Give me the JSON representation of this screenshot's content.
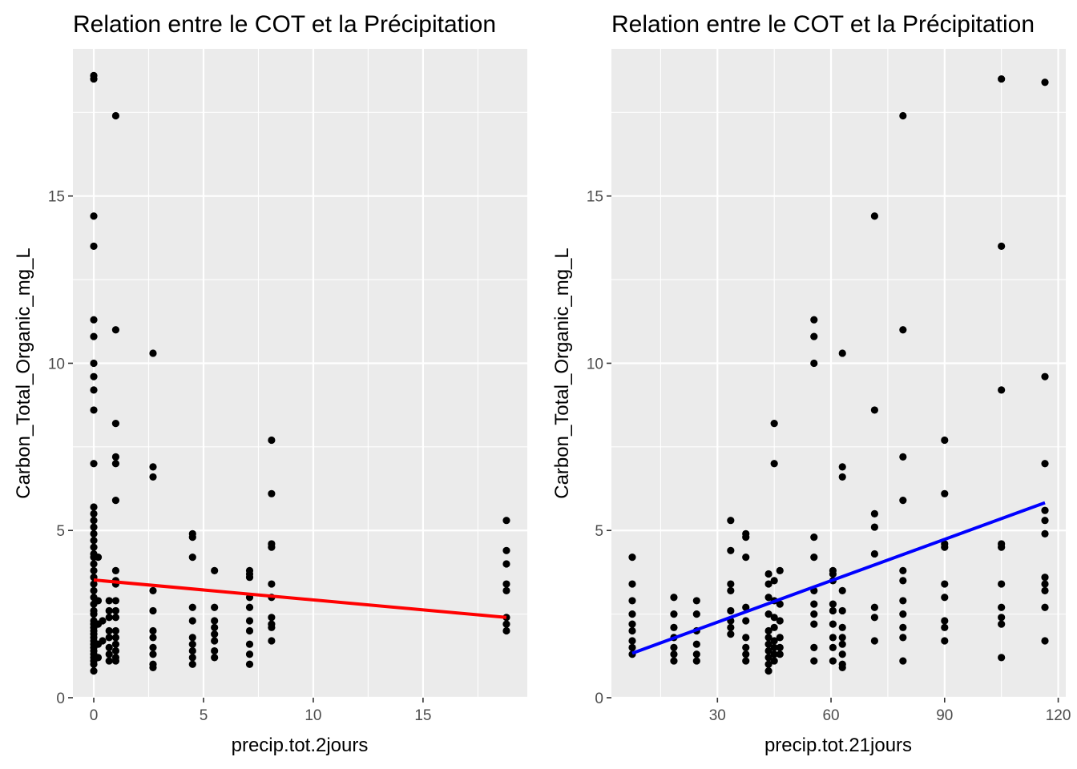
{
  "chart_data": [
    {
      "type": "scatter",
      "title": "Relation entre le COT et la Précipitation",
      "xlabel": "precip.tot.2jours",
      "ylabel": "Carbon_Total_Organic_mg_L",
      "xlim": [
        -0.95,
        19.75
      ],
      "ylim": [
        0,
        19.4
      ],
      "xticks": [
        0,
        5,
        10,
        15
      ],
      "xtick_labels": [
        "0",
        "5",
        "10",
        "15"
      ],
      "yticks": [
        0,
        5,
        10,
        15
      ],
      "ytick_labels": [
        "0",
        "5",
        "10",
        "15"
      ],
      "grid": true,
      "points": [
        [
          0,
          18.6
        ],
        [
          0,
          18.5
        ],
        [
          0,
          14.4
        ],
        [
          0,
          13.5
        ],
        [
          0,
          11.3
        ],
        [
          0,
          10.8
        ],
        [
          0,
          10.0
        ],
        [
          0,
          9.6
        ],
        [
          0,
          9.2
        ],
        [
          0,
          8.6
        ],
        [
          0,
          7.0
        ],
        [
          0,
          5.7
        ],
        [
          0,
          5.5
        ],
        [
          0,
          5.3
        ],
        [
          0,
          5.1
        ],
        [
          0,
          4.9
        ],
        [
          0,
          4.7
        ],
        [
          0,
          4.5
        ],
        [
          0,
          4.3
        ],
        [
          0,
          4.2
        ],
        [
          0,
          4.0
        ],
        [
          0,
          3.8
        ],
        [
          0,
          3.6
        ],
        [
          0,
          3.4
        ],
        [
          0,
          3.2
        ],
        [
          0,
          3.0
        ],
        [
          0,
          2.8
        ],
        [
          0,
          2.6
        ],
        [
          0,
          2.5
        ],
        [
          0,
          2.3
        ],
        [
          0,
          2.2
        ],
        [
          0,
          2.1
        ],
        [
          0,
          2.0
        ],
        [
          0,
          1.9
        ],
        [
          0,
          1.8
        ],
        [
          0,
          1.7
        ],
        [
          0,
          1.6
        ],
        [
          0,
          1.5
        ],
        [
          0,
          1.4
        ],
        [
          0,
          1.3
        ],
        [
          0,
          1.2
        ],
        [
          0,
          1.1
        ],
        [
          0,
          1.0
        ],
        [
          0,
          0.8
        ],
        [
          0.2,
          4.2
        ],
        [
          0.2,
          2.9
        ],
        [
          0.2,
          2.2
        ],
        [
          0.2,
          1.6
        ],
        [
          0.2,
          1.2
        ],
        [
          0.4,
          2.3
        ],
        [
          0.4,
          1.7
        ],
        [
          0.7,
          2.9
        ],
        [
          0.7,
          2.6
        ],
        [
          0.7,
          2.4
        ],
        [
          0.7,
          2.0
        ],
        [
          0.7,
          1.8
        ],
        [
          0.7,
          1.5
        ],
        [
          0.7,
          1.3
        ],
        [
          0.7,
          1.1
        ],
        [
          1.0,
          17.4
        ],
        [
          1.0,
          11.0
        ],
        [
          1.0,
          8.2
        ],
        [
          1.0,
          7.2
        ],
        [
          1.0,
          7.0
        ],
        [
          1.0,
          5.9
        ],
        [
          1.0,
          3.8
        ],
        [
          1.0,
          3.5
        ],
        [
          1.0,
          3.4
        ],
        [
          1.0,
          2.9
        ],
        [
          1.0,
          2.6
        ],
        [
          1.0,
          2.4
        ],
        [
          1.0,
          2.0
        ],
        [
          1.0,
          1.8
        ],
        [
          1.0,
          1.6
        ],
        [
          1.0,
          1.4
        ],
        [
          1.0,
          1.2
        ],
        [
          1.0,
          1.1
        ],
        [
          2.7,
          10.3
        ],
        [
          2.7,
          6.9
        ],
        [
          2.7,
          6.6
        ],
        [
          2.7,
          3.2
        ],
        [
          2.7,
          2.6
        ],
        [
          2.7,
          2.0
        ],
        [
          2.7,
          1.8
        ],
        [
          2.7,
          1.5
        ],
        [
          2.7,
          1.3
        ],
        [
          2.7,
          1.0
        ],
        [
          2.7,
          0.9
        ],
        [
          4.5,
          4.9
        ],
        [
          4.5,
          4.8
        ],
        [
          4.5,
          4.2
        ],
        [
          4.5,
          2.7
        ],
        [
          4.5,
          2.3
        ],
        [
          4.5,
          1.8
        ],
        [
          4.5,
          1.6
        ],
        [
          4.5,
          1.4
        ],
        [
          4.5,
          1.2
        ],
        [
          4.5,
          1.0
        ],
        [
          5.5,
          3.8
        ],
        [
          5.5,
          2.7
        ],
        [
          5.5,
          2.3
        ],
        [
          5.5,
          2.1
        ],
        [
          5.5,
          1.9
        ],
        [
          5.5,
          1.7
        ],
        [
          5.5,
          1.4
        ],
        [
          5.5,
          1.2
        ],
        [
          7.1,
          3.8
        ],
        [
          7.1,
          3.7
        ],
        [
          7.1,
          3.6
        ],
        [
          7.1,
          3.0
        ],
        [
          7.1,
          2.7
        ],
        [
          7.1,
          2.3
        ],
        [
          7.1,
          2.0
        ],
        [
          7.1,
          1.6
        ],
        [
          7.1,
          1.3
        ],
        [
          7.1,
          1.0
        ],
        [
          8.1,
          7.7
        ],
        [
          8.1,
          6.1
        ],
        [
          8.1,
          4.6
        ],
        [
          8.1,
          4.5
        ],
        [
          8.1,
          3.4
        ],
        [
          8.1,
          3.0
        ],
        [
          8.1,
          2.4
        ],
        [
          8.1,
          2.2
        ],
        [
          8.1,
          2.1
        ],
        [
          8.1,
          1.7
        ],
        [
          18.8,
          5.3
        ],
        [
          18.8,
          4.4
        ],
        [
          18.8,
          4.0
        ],
        [
          18.8,
          3.4
        ],
        [
          18.8,
          3.2
        ],
        [
          18.8,
          2.4
        ],
        [
          18.8,
          2.2
        ],
        [
          18.8,
          2.0
        ]
      ],
      "trend": {
        "color": "#FF0000",
        "x": [
          0,
          18.8
        ],
        "y": [
          3.52,
          2.4
        ]
      },
      "point_color": "#000000"
    },
    {
      "type": "scatter",
      "title": "Relation entre le COT et la Précipitation",
      "xlabel": "precip.tot.21jours",
      "ylabel": "Carbon_Total_Organic_mg_L",
      "xlim": [
        2,
        122
      ],
      "ylim": [
        0,
        19.4
      ],
      "xticks": [
        30,
        60,
        90,
        120
      ],
      "xtick_labels": [
        "30",
        "60",
        "90",
        "120"
      ],
      "yticks": [
        0,
        5,
        10,
        15
      ],
      "ytick_labels": [
        "0",
        "5",
        "10",
        "15"
      ],
      "grid": true,
      "points": [
        [
          7.5,
          4.2
        ],
        [
          7.5,
          3.4
        ],
        [
          7.5,
          2.9
        ],
        [
          7.5,
          2.5
        ],
        [
          7.5,
          2.2
        ],
        [
          7.5,
          2.0
        ],
        [
          7.5,
          1.7
        ],
        [
          7.5,
          1.5
        ],
        [
          7.5,
          1.3
        ],
        [
          18.5,
          3.0
        ],
        [
          18.5,
          2.5
        ],
        [
          18.5,
          2.1
        ],
        [
          18.5,
          1.8
        ],
        [
          18.5,
          1.5
        ],
        [
          18.5,
          1.3
        ],
        [
          18.5,
          1.1
        ],
        [
          24.5,
          2.9
        ],
        [
          24.5,
          2.5
        ],
        [
          24.5,
          2.0
        ],
        [
          24.5,
          1.6
        ],
        [
          24.5,
          1.3
        ],
        [
          24.5,
          1.1
        ],
        [
          33.5,
          5.3
        ],
        [
          33.5,
          4.4
        ],
        [
          33.5,
          3.4
        ],
        [
          33.5,
          3.2
        ],
        [
          33.5,
          2.6
        ],
        [
          33.5,
          2.3
        ],
        [
          33.5,
          2.1
        ],
        [
          33.5,
          1.9
        ],
        [
          37.5,
          4.9
        ],
        [
          37.5,
          4.8
        ],
        [
          37.5,
          4.2
        ],
        [
          37.5,
          2.7
        ],
        [
          37.5,
          2.3
        ],
        [
          37.5,
          1.8
        ],
        [
          37.5,
          1.5
        ],
        [
          37.5,
          1.3
        ],
        [
          37.5,
          1.1
        ],
        [
          43.5,
          3.7
        ],
        [
          43.5,
          3.4
        ],
        [
          43.5,
          3.0
        ],
        [
          43.5,
          2.5
        ],
        [
          43.5,
          2.0
        ],
        [
          43.5,
          1.8
        ],
        [
          43.5,
          1.6
        ],
        [
          43.5,
          1.4
        ],
        [
          43.5,
          1.2
        ],
        [
          43.5,
          1.0
        ],
        [
          43.5,
          0.8
        ],
        [
          45,
          8.2
        ],
        [
          45,
          7.0
        ],
        [
          45,
          3.5
        ],
        [
          45,
          2.9
        ],
        [
          45,
          2.4
        ],
        [
          45,
          2.1
        ],
        [
          45,
          1.7
        ],
        [
          45,
          1.5
        ],
        [
          45,
          1.3
        ],
        [
          45,
          1.1
        ],
        [
          46.5,
          3.8
        ],
        [
          46.5,
          2.8
        ],
        [
          46.5,
          2.3
        ],
        [
          46.5,
          1.8
        ],
        [
          46.5,
          1.5
        ],
        [
          46.5,
          1.3
        ],
        [
          55.5,
          11.3
        ],
        [
          55.5,
          10.8
        ],
        [
          55.5,
          10.0
        ],
        [
          55.5,
          4.8
        ],
        [
          55.5,
          4.2
        ],
        [
          55.5,
          3.2
        ],
        [
          55.5,
          2.8
        ],
        [
          55.5,
          2.5
        ],
        [
          55.5,
          2.2
        ],
        [
          55.5,
          1.5
        ],
        [
          55.5,
          1.1
        ],
        [
          60.5,
          3.8
        ],
        [
          60.5,
          3.7
        ],
        [
          60.5,
          3.5
        ],
        [
          60.5,
          2.8
        ],
        [
          60.5,
          2.6
        ],
        [
          60.5,
          2.2
        ],
        [
          60.5,
          1.8
        ],
        [
          60.5,
          1.5
        ],
        [
          60.5,
          1.1
        ],
        [
          63,
          10.3
        ],
        [
          63,
          6.9
        ],
        [
          63,
          6.6
        ],
        [
          63,
          3.2
        ],
        [
          63,
          2.6
        ],
        [
          63,
          2.1
        ],
        [
          63,
          1.8
        ],
        [
          63,
          1.6
        ],
        [
          63,
          1.3
        ],
        [
          63,
          1.0
        ],
        [
          63,
          0.9
        ],
        [
          71.5,
          14.4
        ],
        [
          71.5,
          8.6
        ],
        [
          71.5,
          5.5
        ],
        [
          71.5,
          5.1
        ],
        [
          71.5,
          4.3
        ],
        [
          71.5,
          2.7
        ],
        [
          71.5,
          2.4
        ],
        [
          71.5,
          1.7
        ],
        [
          79,
          17.4
        ],
        [
          79,
          11.0
        ],
        [
          79,
          7.2
        ],
        [
          79,
          5.9
        ],
        [
          79,
          3.8
        ],
        [
          79,
          3.5
        ],
        [
          79,
          2.9
        ],
        [
          79,
          2.5
        ],
        [
          79,
          2.1
        ],
        [
          79,
          1.8
        ],
        [
          79,
          1.1
        ],
        [
          90,
          7.7
        ],
        [
          90,
          6.1
        ],
        [
          90,
          4.6
        ],
        [
          90,
          4.5
        ],
        [
          90,
          3.4
        ],
        [
          90,
          3.0
        ],
        [
          90,
          2.3
        ],
        [
          90,
          2.1
        ],
        [
          90,
          1.7
        ],
        [
          105,
          18.5
        ],
        [
          105,
          13.5
        ],
        [
          105,
          9.2
        ],
        [
          105,
          4.6
        ],
        [
          105,
          4.5
        ],
        [
          105,
          3.4
        ],
        [
          105,
          2.7
        ],
        [
          105,
          2.4
        ],
        [
          105,
          2.2
        ],
        [
          105,
          1.2
        ],
        [
          116.5,
          18.4
        ],
        [
          116.5,
          9.6
        ],
        [
          116.5,
          7.0
        ],
        [
          116.5,
          5.6
        ],
        [
          116.5,
          5.3
        ],
        [
          116.5,
          4.9
        ],
        [
          116.5,
          3.6
        ],
        [
          116.5,
          3.4
        ],
        [
          116.5,
          3.2
        ],
        [
          116.5,
          2.7
        ],
        [
          116.5,
          1.7
        ]
      ],
      "trend": {
        "color": "#0000FF",
        "x": [
          7.5,
          116.5
        ],
        "y": [
          1.33,
          5.83
        ]
      },
      "point_color": "#000000"
    }
  ]
}
